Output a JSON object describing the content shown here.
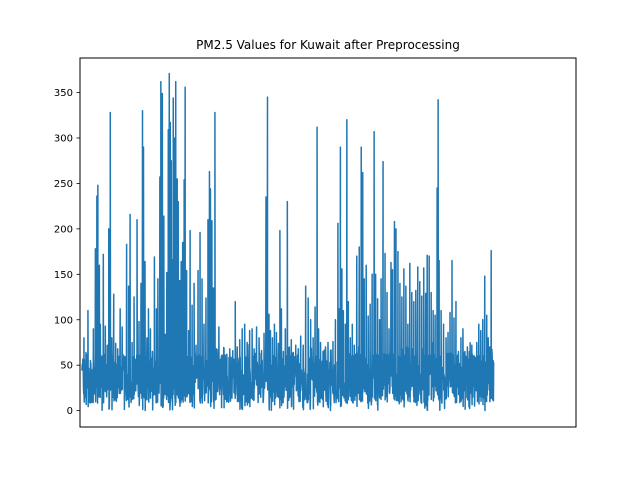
{
  "chart_data": {
    "type": "line",
    "title": "PM2.5 Values for Kuwait after Preprocessing",
    "xlabel": "",
    "ylabel": "",
    "ylim": [
      -18,
      388
    ],
    "xlim": [
      0,
      1
    ],
    "yticks": [
      0,
      50,
      100,
      150,
      200,
      250,
      300,
      350
    ],
    "xticks": [],
    "grid": false,
    "legend": "none",
    "series_color": "#1f77b4",
    "baseline_min": 0,
    "baseline_max": 75,
    "spikes": [
      [
        0.008,
        80
      ],
      [
        0.012,
        64
      ],
      [
        0.016,
        110
      ],
      [
        0.021,
        55
      ],
      [
        0.027,
        90
      ],
      [
        0.031,
        178
      ],
      [
        0.034,
        236
      ],
      [
        0.036,
        248
      ],
      [
        0.039,
        160
      ],
      [
        0.041,
        95
      ],
      [
        0.044,
        60
      ],
      [
        0.047,
        172
      ],
      [
        0.051,
        93
      ],
      [
        0.055,
        72
      ],
      [
        0.058,
        200
      ],
      [
        0.061,
        328
      ],
      [
        0.064,
        80
      ],
      [
        0.068,
        128
      ],
      [
        0.072,
        74
      ],
      [
        0.076,
        68
      ],
      [
        0.081,
        112
      ],
      [
        0.085,
        92
      ],
      [
        0.089,
        60
      ],
      [
        0.094,
        183
      ],
      [
        0.098,
        137
      ],
      [
        0.101,
        216
      ],
      [
        0.105,
        75
      ],
      [
        0.109,
        125
      ],
      [
        0.112,
        55
      ],
      [
        0.115,
        210
      ],
      [
        0.119,
        98
      ],
      [
        0.123,
        140
      ],
      [
        0.126,
        330
      ],
      [
        0.128,
        290
      ],
      [
        0.131,
        164
      ],
      [
        0.135,
        80
      ],
      [
        0.138,
        112
      ],
      [
        0.142,
        90
      ],
      [
        0.146,
        65
      ],
      [
        0.15,
        169
      ],
      [
        0.154,
        112
      ],
      [
        0.157,
        145
      ],
      [
        0.161,
        257
      ],
      [
        0.163,
        362
      ],
      [
        0.166,
        349
      ],
      [
        0.169,
        214
      ],
      [
        0.172,
        84
      ],
      [
        0.175,
        152
      ],
      [
        0.178,
        309
      ],
      [
        0.18,
        371
      ],
      [
        0.182,
        317
      ],
      [
        0.184,
        275
      ],
      [
        0.186,
        166
      ],
      [
        0.188,
        344
      ],
      [
        0.191,
        300
      ],
      [
        0.193,
        362
      ],
      [
        0.196,
        255
      ],
      [
        0.198,
        230
      ],
      [
        0.201,
        143
      ],
      [
        0.204,
        164
      ],
      [
        0.207,
        185
      ],
      [
        0.21,
        254
      ],
      [
        0.212,
        356
      ],
      [
        0.215,
        154
      ],
      [
        0.219,
        88
      ],
      [
        0.222,
        198
      ],
      [
        0.226,
        116
      ],
      [
        0.23,
        140
      ],
      [
        0.234,
        72
      ],
      [
        0.238,
        154
      ],
      [
        0.242,
        196
      ],
      [
        0.246,
        145
      ],
      [
        0.25,
        95
      ],
      [
        0.254,
        124
      ],
      [
        0.258,
        210
      ],
      [
        0.261,
        263
      ],
      [
        0.263,
        244
      ],
      [
        0.266,
        209
      ],
      [
        0.269,
        135
      ],
      [
        0.272,
        328
      ],
      [
        0.275,
        68
      ],
      [
        0.28,
        92
      ],
      [
        0.285,
        60
      ],
      [
        0.29,
        58
      ],
      [
        0.296,
        62
      ],
      [
        0.302,
        68
      ],
      [
        0.308,
        66
      ],
      [
        0.313,
        120
      ],
      [
        0.317,
        70
      ],
      [
        0.322,
        78
      ],
      [
        0.327,
        90
      ],
      [
        0.332,
        95
      ],
      [
        0.337,
        75
      ],
      [
        0.342,
        88
      ],
      [
        0.347,
        90
      ],
      [
        0.351,
        68
      ],
      [
        0.356,
        92
      ],
      [
        0.361,
        80
      ],
      [
        0.366,
        66
      ],
      [
        0.371,
        85
      ],
      [
        0.375,
        235
      ],
      [
        0.378,
        345
      ],
      [
        0.381,
        106
      ],
      [
        0.384,
        88
      ],
      [
        0.388,
        80
      ],
      [
        0.392,
        95
      ],
      [
        0.396,
        86
      ],
      [
        0.4,
        74
      ],
      [
        0.403,
        198
      ],
      [
        0.406,
        112
      ],
      [
        0.41,
        65
      ],
      [
        0.414,
        90
      ],
      [
        0.418,
        230
      ],
      [
        0.422,
        70
      ],
      [
        0.426,
        78
      ],
      [
        0.43,
        64
      ],
      [
        0.435,
        72
      ],
      [
        0.44,
        68
      ],
      [
        0.445,
        82
      ],
      [
        0.45,
        72
      ],
      [
        0.455,
        137
      ],
      [
        0.46,
        124
      ],
      [
        0.465,
        100
      ],
      [
        0.47,
        80
      ],
      [
        0.474,
        114
      ],
      [
        0.478,
        312
      ],
      [
        0.481,
        90
      ],
      [
        0.485,
        75
      ],
      [
        0.49,
        65
      ],
      [
        0.495,
        70
      ],
      [
        0.5,
        75
      ],
      [
        0.505,
        66
      ],
      [
        0.51,
        76
      ],
      [
        0.515,
        100
      ],
      [
        0.52,
        206
      ],
      [
        0.522,
        112
      ],
      [
        0.525,
        290
      ],
      [
        0.528,
        156
      ],
      [
        0.531,
        110
      ],
      [
        0.535,
        95
      ],
      [
        0.538,
        320
      ],
      [
        0.541,
        120
      ],
      [
        0.545,
        80
      ],
      [
        0.549,
        95
      ],
      [
        0.553,
        72
      ],
      [
        0.558,
        170
      ],
      [
        0.563,
        180
      ],
      [
        0.567,
        290
      ],
      [
        0.57,
        262
      ],
      [
        0.573,
        145
      ],
      [
        0.577,
        160
      ],
      [
        0.581,
        104
      ],
      [
        0.585,
        117
      ],
      [
        0.589,
        150
      ],
      [
        0.593,
        307
      ],
      [
        0.596,
        150
      ],
      [
        0.6,
        123
      ],
      [
        0.604,
        100
      ],
      [
        0.607,
        145
      ],
      [
        0.611,
        274
      ],
      [
        0.615,
        173
      ],
      [
        0.619,
        130
      ],
      [
        0.623,
        90
      ],
      [
        0.627,
        163
      ],
      [
        0.63,
        155
      ],
      [
        0.634,
        208
      ],
      [
        0.637,
        200
      ],
      [
        0.641,
        175
      ],
      [
        0.645,
        140
      ],
      [
        0.649,
        125
      ],
      [
        0.653,
        156
      ],
      [
        0.657,
        137
      ],
      [
        0.661,
        95
      ],
      [
        0.665,
        162
      ],
      [
        0.669,
        130
      ],
      [
        0.673,
        120
      ],
      [
        0.677,
        132
      ],
      [
        0.681,
        158
      ],
      [
        0.685,
        142
      ],
      [
        0.689,
        126
      ],
      [
        0.693,
        157
      ],
      [
        0.697,
        129
      ],
      [
        0.7,
        171
      ],
      [
        0.704,
        170
      ],
      [
        0.708,
        130
      ],
      [
        0.712,
        110
      ],
      [
        0.716,
        105
      ],
      [
        0.72,
        245
      ],
      [
        0.722,
        342
      ],
      [
        0.724,
        165
      ],
      [
        0.728,
        110
      ],
      [
        0.733,
        95
      ],
      [
        0.738,
        80
      ],
      [
        0.742,
        86
      ],
      [
        0.746,
        108
      ],
      [
        0.75,
        165
      ],
      [
        0.754,
        102
      ],
      [
        0.758,
        120
      ],
      [
        0.763,
        65
      ],
      [
        0.768,
        80
      ],
      [
        0.772,
        90
      ],
      [
        0.776,
        65
      ],
      [
        0.781,
        70
      ],
      [
        0.785,
        65
      ],
      [
        0.79,
        72
      ],
      [
        0.795,
        60
      ],
      [
        0.8,
        75
      ],
      [
        0.804,
        95
      ],
      [
        0.808,
        88
      ],
      [
        0.812,
        100
      ],
      [
        0.816,
        148
      ],
      [
        0.82,
        105
      ],
      [
        0.823,
        80
      ],
      [
        0.826,
        70
      ],
      [
        0.829,
        176
      ],
      [
        0.831,
        60
      ],
      [
        0.833,
        55
      ]
    ]
  }
}
